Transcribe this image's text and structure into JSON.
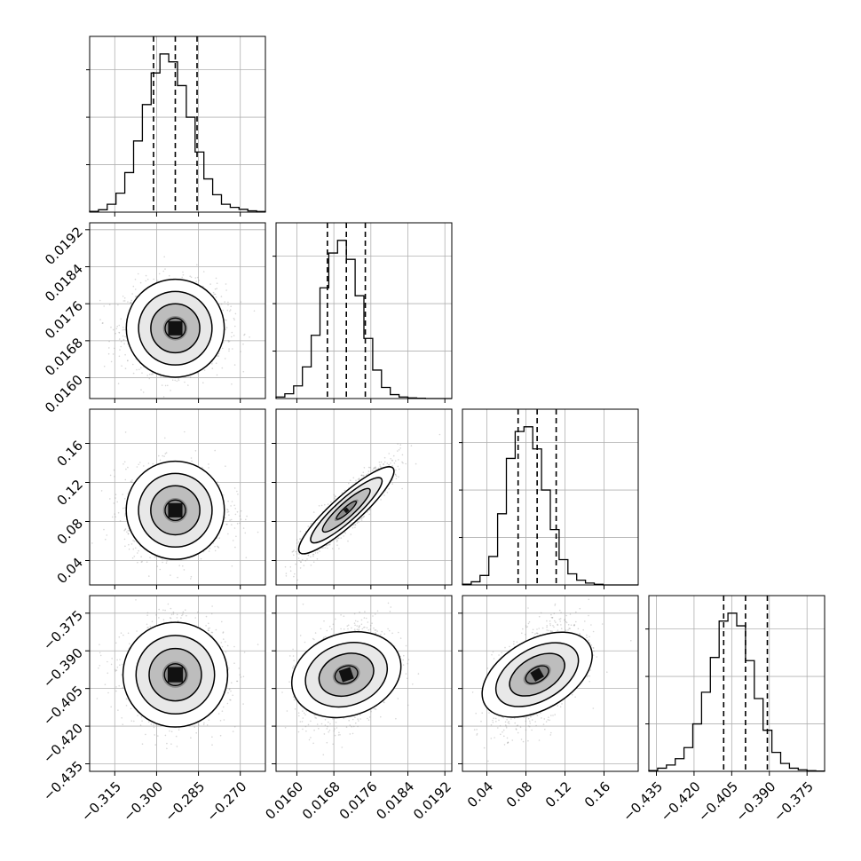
{
  "chart_data": {
    "type": "corner",
    "title": "",
    "n_params": 4,
    "grid": true,
    "style": {
      "hist_color": "#000000",
      "point_color": "#8c8c8c",
      "grid_color": "#b0b0b0"
    },
    "quantile_levels": [
      0.16,
      0.5,
      0.84
    ],
    "params": [
      {
        "index": 0,
        "range": [
          -0.324,
          -0.261
        ],
        "ticks": [
          -0.315,
          -0.3,
          -0.285,
          -0.27
        ],
        "tick_labels": [
          "−0.315",
          "−0.300",
          "−0.285",
          "−0.270"
        ],
        "mean": -0.2933,
        "sigma": 0.0078,
        "quantiles": [
          -0.3011,
          -0.2933,
          -0.2855
        ],
        "hist_bins": 20,
        "hist_counts": [
          0.005,
          0.015,
          0.05,
          0.12,
          0.25,
          0.45,
          0.68,
          0.88,
          1.0,
          0.95,
          0.8,
          0.6,
          0.38,
          0.21,
          0.11,
          0.05,
          0.03,
          0.018,
          0.008,
          0.004
        ]
      },
      {
        "index": 1,
        "range": [
          0.01555,
          0.01935
        ],
        "ticks": [
          0.016,
          0.0168,
          0.0176,
          0.0184,
          0.0192
        ],
        "tick_labels": [
          "0.0160",
          "0.0168",
          "0.0176",
          "0.0184",
          "0.0192"
        ],
        "mean": 0.01707,
        "sigma": 0.00041,
        "quantiles": [
          0.01666,
          0.01707,
          0.01748
        ],
        "hist_bins": 20,
        "hist_counts": [
          0.01,
          0.03,
          0.08,
          0.2,
          0.4,
          0.7,
          0.92,
          1.0,
          0.88,
          0.65,
          0.38,
          0.18,
          0.07,
          0.025,
          0.01,
          0.004,
          0.002,
          0.0,
          0.0,
          0.0
        ]
      },
      {
        "index": 2,
        "range": [
          0.015,
          0.195
        ],
        "ticks": [
          0.04,
          0.08,
          0.12,
          0.16
        ],
        "tick_labels": [
          "0.04",
          "0.08",
          "0.12",
          "0.16"
        ],
        "mean": 0.0915,
        "sigma": 0.0195,
        "quantiles": [
          0.072,
          0.0915,
          0.111
        ],
        "hist_bins": 20,
        "hist_counts": [
          0.005,
          0.02,
          0.06,
          0.18,
          0.45,
          0.8,
          0.97,
          1.0,
          0.86,
          0.6,
          0.35,
          0.16,
          0.07,
          0.03,
          0.012,
          0.004,
          0.0,
          0.0,
          0.0,
          0.0
        ]
      },
      {
        "index": 3,
        "range": [
          -0.438,
          -0.368
        ],
        "ticks": [
          -0.435,
          -0.42,
          -0.405,
          -0.39,
          -0.375
        ],
        "tick_labels": [
          "−0.435",
          "−0.420",
          "−0.405",
          "−0.390",
          "−0.375"
        ],
        "mean": -0.3995,
        "sigma": 0.0087,
        "quantiles": [
          -0.4082,
          -0.3995,
          -0.3908
        ],
        "hist_bins": 20,
        "hist_counts": [
          0.005,
          0.02,
          0.04,
          0.08,
          0.15,
          0.3,
          0.5,
          0.72,
          0.95,
          1.0,
          0.92,
          0.7,
          0.46,
          0.26,
          0.12,
          0.05,
          0.02,
          0.01,
          0.004,
          0.002
        ]
      }
    ],
    "correlations": [
      [
        1,
        0,
        0,
        0
      ],
      [
        0,
        1,
        0.9,
        0.3
      ],
      [
        0,
        0.9,
        1,
        0.5
      ],
      [
        0,
        0.3,
        0.5,
        1
      ]
    ],
    "contour_levels_sigma": [
      0.5,
      1.0,
      1.5,
      2.0
    ]
  }
}
